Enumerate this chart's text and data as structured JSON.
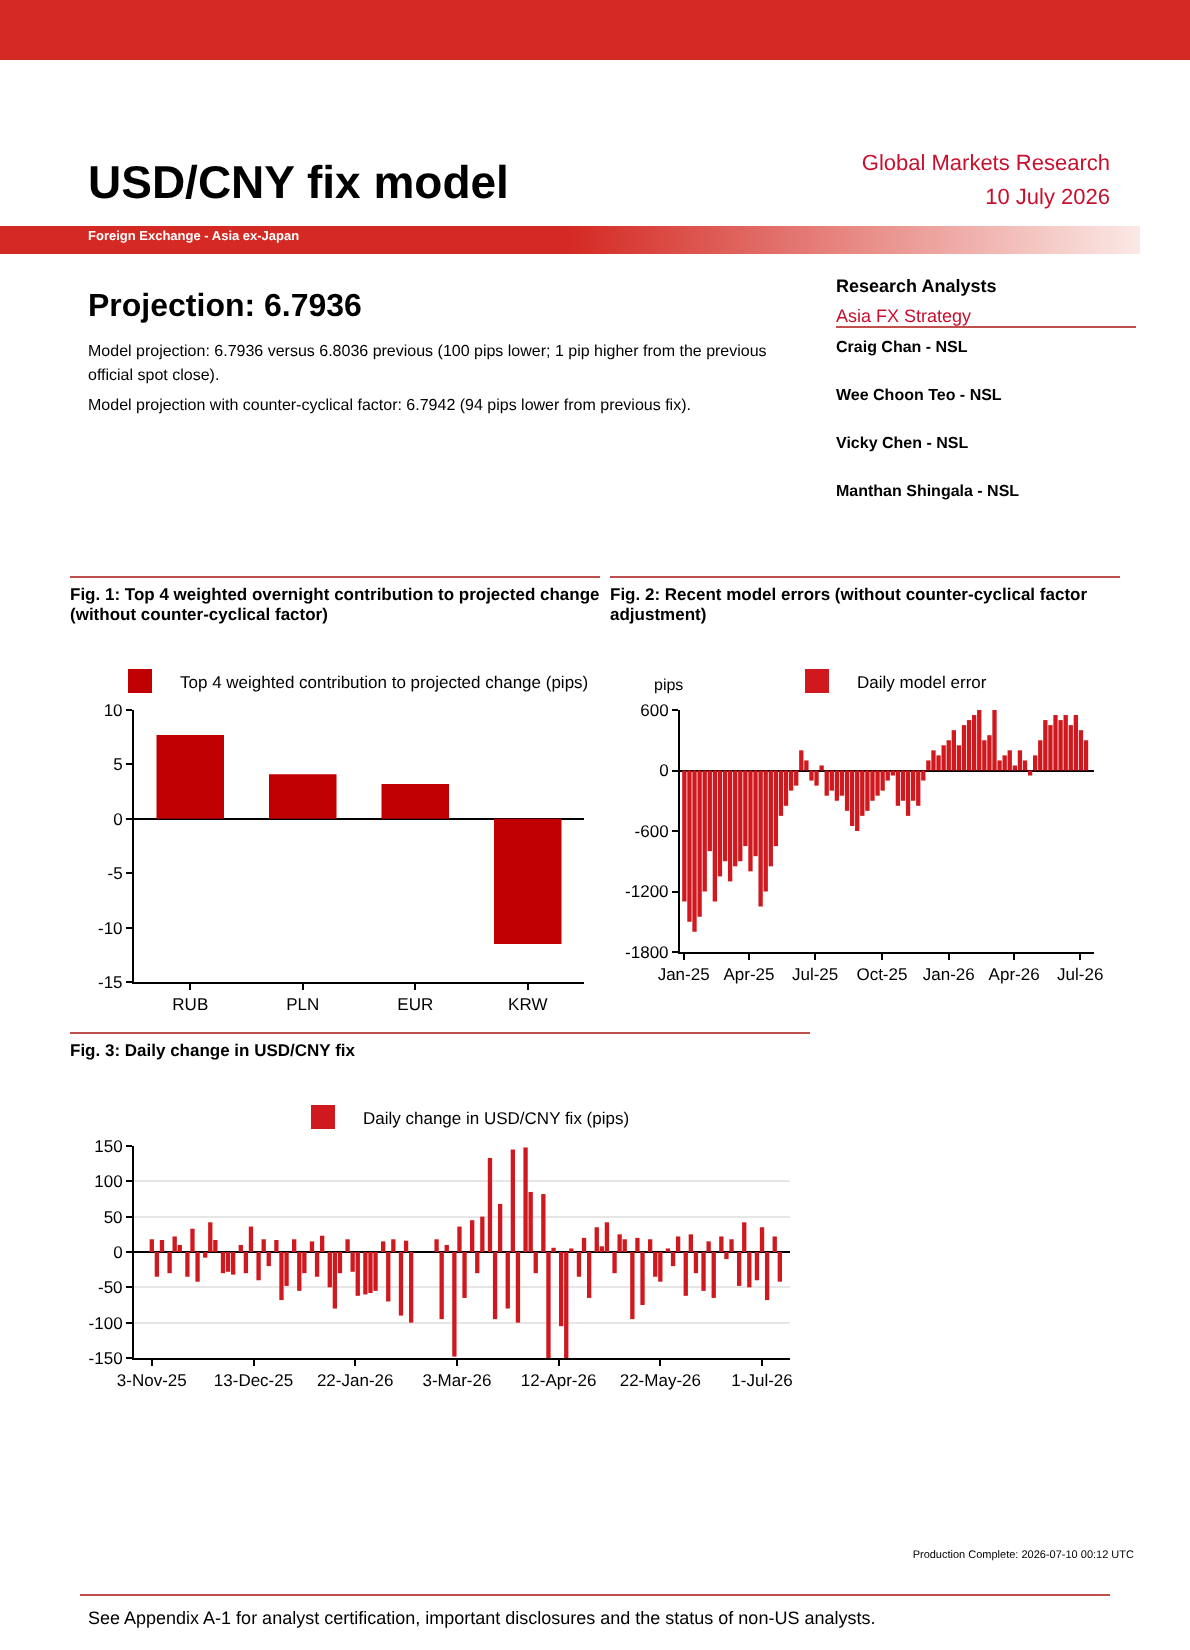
{
  "chart_data": [
    {
      "type": "other",
      "title": "USD/CNY fix model",
      "annotations": [
        "Global Markets Research",
        "10 July 2026",
        "Foreign Exchange - Asia ex-Japan",
        "Projection: 6.7936",
        "Model projection: 6.7936 versus 6.8036 previous (100 pips lower; 1 pip higher from the previous official spot close).",
        "Model projection with counter-cyclical factor: 6.7942 (94 pips lower from previous fix).",
        "Research Analysts",
        "Asia FX Strategy",
        "Craig Chan -  NSL",
        "Wee Choon Teo -  NSL",
        "Vicky Chen -  NSL",
        "Manthan Shingala -  NSL",
        "Production Complete: 2026-07-10 00:12 UTC",
        "See Appendix A-1 for analyst certification, important disclosures and the status of non-US analysts."
      ]
    },
    {
      "type": "bar",
      "title": "Fig. 1: Top 4 weighted overnight contribution to projected change (without counter-cyclical factor)",
      "categories": [
        "RUB",
        "PLN",
        "EUR",
        "KRW"
      ],
      "series": [
        {
          "name": "Top 4 weighted contribution to projected change (pips)",
          "color": "#c00000",
          "values": [
            7.7,
            4.1,
            3.2,
            -11.5
          ]
        }
      ],
      "ylim": [
        -15,
        10
      ],
      "yticks": [
        -15,
        -10,
        -5,
        0,
        5,
        10
      ],
      "legend": "top"
    },
    {
      "type": "bar",
      "title": "Fig. 2: Recent model errors (without counter-cyclical factor adjustment)",
      "ylabel": "pips",
      "x": [
        "2025-01-02",
        "2025-01-09",
        "2025-01-16",
        "2025-01-23",
        "2025-01-30",
        "2025-02-06",
        "2025-02-13",
        "2025-02-20",
        "2025-02-27",
        "2025-03-06",
        "2025-03-13",
        "2025-03-20",
        "2025-03-27",
        "2025-04-03",
        "2025-04-10",
        "2025-04-17",
        "2025-04-24",
        "2025-05-01",
        "2025-05-08",
        "2025-05-15",
        "2025-05-22",
        "2025-05-29",
        "2025-06-05",
        "2025-06-12",
        "2025-06-19",
        "2025-06-26",
        "2025-07-03",
        "2025-07-10",
        "2025-07-17",
        "2025-07-24",
        "2025-07-31",
        "2025-08-07",
        "2025-08-14",
        "2025-08-21",
        "2025-08-28",
        "2025-09-04",
        "2025-09-11",
        "2025-09-18",
        "2025-09-25",
        "2025-10-02",
        "2025-10-09",
        "2025-10-16",
        "2025-10-23",
        "2025-10-30",
        "2025-11-06",
        "2025-11-13",
        "2025-11-20",
        "2025-11-27",
        "2025-12-04",
        "2025-12-11",
        "2025-12-18",
        "2025-12-25",
        "2026-01-01",
        "2026-01-08",
        "2026-01-15",
        "2026-01-22",
        "2026-01-29",
        "2026-02-05",
        "2026-02-12",
        "2026-02-19",
        "2026-02-26",
        "2026-03-05",
        "2026-03-12",
        "2026-03-19",
        "2026-03-26",
        "2026-04-02",
        "2026-04-09",
        "2026-04-16",
        "2026-04-23",
        "2026-04-30",
        "2026-05-07",
        "2026-05-14",
        "2026-05-21",
        "2026-05-28",
        "2026-06-04",
        "2026-06-11",
        "2026-06-18",
        "2026-06-25",
        "2026-07-02",
        "2026-07-09"
      ],
      "series": [
        {
          "name": "Daily model error",
          "color": "#d0191e",
          "values": [
            -1300,
            -1500,
            -1600,
            -1450,
            -1200,
            -800,
            -1300,
            -1050,
            -900,
            -1100,
            -950,
            -900,
            -750,
            -1000,
            -850,
            -1350,
            -1200,
            -950,
            -750,
            -450,
            -350,
            -200,
            -150,
            200,
            100,
            -100,
            -150,
            50,
            -250,
            -200,
            -300,
            -250,
            -400,
            -550,
            -600,
            -450,
            -400,
            -300,
            -250,
            -200,
            -100,
            -50,
            -350,
            -300,
            -450,
            -300,
            -350,
            -100,
            100,
            200,
            150,
            250,
            300,
            400,
            250,
            450,
            500,
            550,
            600,
            300,
            350,
            600,
            100,
            150,
            200,
            50,
            200,
            100,
            -50,
            150,
            300,
            500,
            450,
            550,
            500,
            550,
            450,
            550,
            400,
            300
          ]
        }
      ],
      "xlim": [
        "2024-12-27",
        "2026-07-20"
      ],
      "xticks": [
        {
          "value": "2025-01-01",
          "label": "Jan-25"
        },
        {
          "value": "2025-04-01",
          "label": "Apr-25"
        },
        {
          "value": "2025-07-01",
          "label": "Jul-25"
        },
        {
          "value": "2025-10-01",
          "label": "Oct-25"
        },
        {
          "value": "2026-01-01",
          "label": "Jan-26"
        },
        {
          "value": "2026-04-01",
          "label": "Apr-26"
        },
        {
          "value": "2026-07-01",
          "label": "Jul-26"
        }
      ],
      "ylim": [
        -1800,
        600
      ],
      "yticks": [
        -1800,
        -1200,
        -600,
        0,
        600
      ],
      "legend": "top"
    },
    {
      "type": "bar",
      "title": "Fig. 3: Daily change in USD/CNY fix",
      "x": [
        "2025-11-03",
        "2025-11-05",
        "2025-11-07",
        "2025-11-10",
        "2025-11-12",
        "2025-11-14",
        "2025-11-17",
        "2025-11-19",
        "2025-11-21",
        "2025-11-24",
        "2025-11-26",
        "2025-11-28",
        "2025-12-01",
        "2025-12-03",
        "2025-12-05",
        "2025-12-08",
        "2025-12-10",
        "2025-12-12",
        "2025-12-15",
        "2025-12-17",
        "2025-12-19",
        "2025-12-22",
        "2025-12-24",
        "2025-12-26",
        "2025-12-29",
        "2025-12-31",
        "2026-01-02",
        "2026-01-05",
        "2026-01-07",
        "2026-01-09",
        "2026-01-12",
        "2026-01-14",
        "2026-01-16",
        "2026-01-19",
        "2026-01-21",
        "2026-01-23",
        "2026-01-26",
        "2026-01-28",
        "2026-01-30",
        "2026-02-02",
        "2026-02-04",
        "2026-02-06",
        "2026-02-09",
        "2026-02-11",
        "2026-02-13",
        "2026-02-23",
        "2026-02-25",
        "2026-02-27",
        "2026-03-02",
        "2026-03-04",
        "2026-03-06",
        "2026-03-09",
        "2026-03-11",
        "2026-03-13",
        "2026-03-16",
        "2026-03-18",
        "2026-03-20",
        "2026-03-23",
        "2026-03-25",
        "2026-03-27",
        "2026-03-30",
        "2026-04-01",
        "2026-04-03",
        "2026-04-06",
        "2026-04-08",
        "2026-04-10",
        "2026-04-13",
        "2026-04-15",
        "2026-04-17",
        "2026-04-20",
        "2026-04-22",
        "2026-04-24",
        "2026-04-27",
        "2026-04-29",
        "2026-05-01",
        "2026-05-04",
        "2026-05-06",
        "2026-05-08",
        "2026-05-11",
        "2026-05-13",
        "2026-05-15",
        "2026-05-18",
        "2026-05-20",
        "2026-05-22",
        "2026-05-25",
        "2026-05-27",
        "2026-05-29",
        "2026-06-01",
        "2026-06-03",
        "2026-06-05",
        "2026-06-08",
        "2026-06-10",
        "2026-06-12",
        "2026-06-15",
        "2026-06-17",
        "2026-06-19",
        "2026-06-22",
        "2026-06-24",
        "2026-06-26",
        "2026-06-29",
        "2026-07-01",
        "2026-07-03",
        "2026-07-06",
        "2026-07-08"
      ],
      "series": [
        {
          "name": "Daily change in USD/CNY fix (pips)",
          "color": "#d0191e",
          "values": [
            18,
            -35,
            17,
            -30,
            22,
            10,
            -35,
            33,
            -42,
            -8,
            42,
            17,
            -30,
            -28,
            -32,
            10,
            -30,
            36,
            -40,
            18,
            -20,
            17,
            -68,
            -48,
            18,
            -55,
            -30,
            15,
            -35,
            23,
            -50,
            -80,
            -30,
            18,
            -28,
            -62,
            -60,
            -58,
            -55,
            15,
            -70,
            18,
            -90,
            16,
            -100,
            18,
            -95,
            10,
            -148,
            36,
            -65,
            45,
            -30,
            50,
            133,
            -95,
            68,
            -80,
            145,
            -100,
            148,
            85,
            -30,
            82,
            -150,
            6,
            -105,
            -150,
            5,
            -35,
            20,
            -65,
            35,
            8,
            42,
            -30,
            25,
            18,
            -95,
            20,
            -75,
            18,
            -35,
            -42,
            5,
            -20,
            22,
            -62,
            25,
            -30,
            -55,
            15,
            -65,
            22,
            -10,
            18,
            -48,
            42,
            -50,
            -40,
            35,
            -68,
            22,
            -42
          ]
        }
      ],
      "xlim": [
        "2025-10-27",
        "2026-07-12"
      ],
      "xticks": [
        {
          "value": "2025-11-03",
          "label": "3-Nov-25"
        },
        {
          "value": "2025-12-13",
          "label": "13-Dec-25"
        },
        {
          "value": "2026-01-22",
          "label": "22-Jan-26"
        },
        {
          "value": "2026-03-03",
          "label": "3-Mar-26"
        },
        {
          "value": "2026-04-12",
          "label": "12-Apr-26"
        },
        {
          "value": "2026-05-22",
          "label": "22-May-26"
        },
        {
          "value": "2026-07-01",
          "label": "1-Jul-26"
        }
      ],
      "ylim": [
        -150,
        150
      ],
      "yticks": [
        -150,
        -100,
        -50,
        0,
        50,
        100,
        150
      ],
      "grid": "y",
      "legend": "top"
    }
  ]
}
